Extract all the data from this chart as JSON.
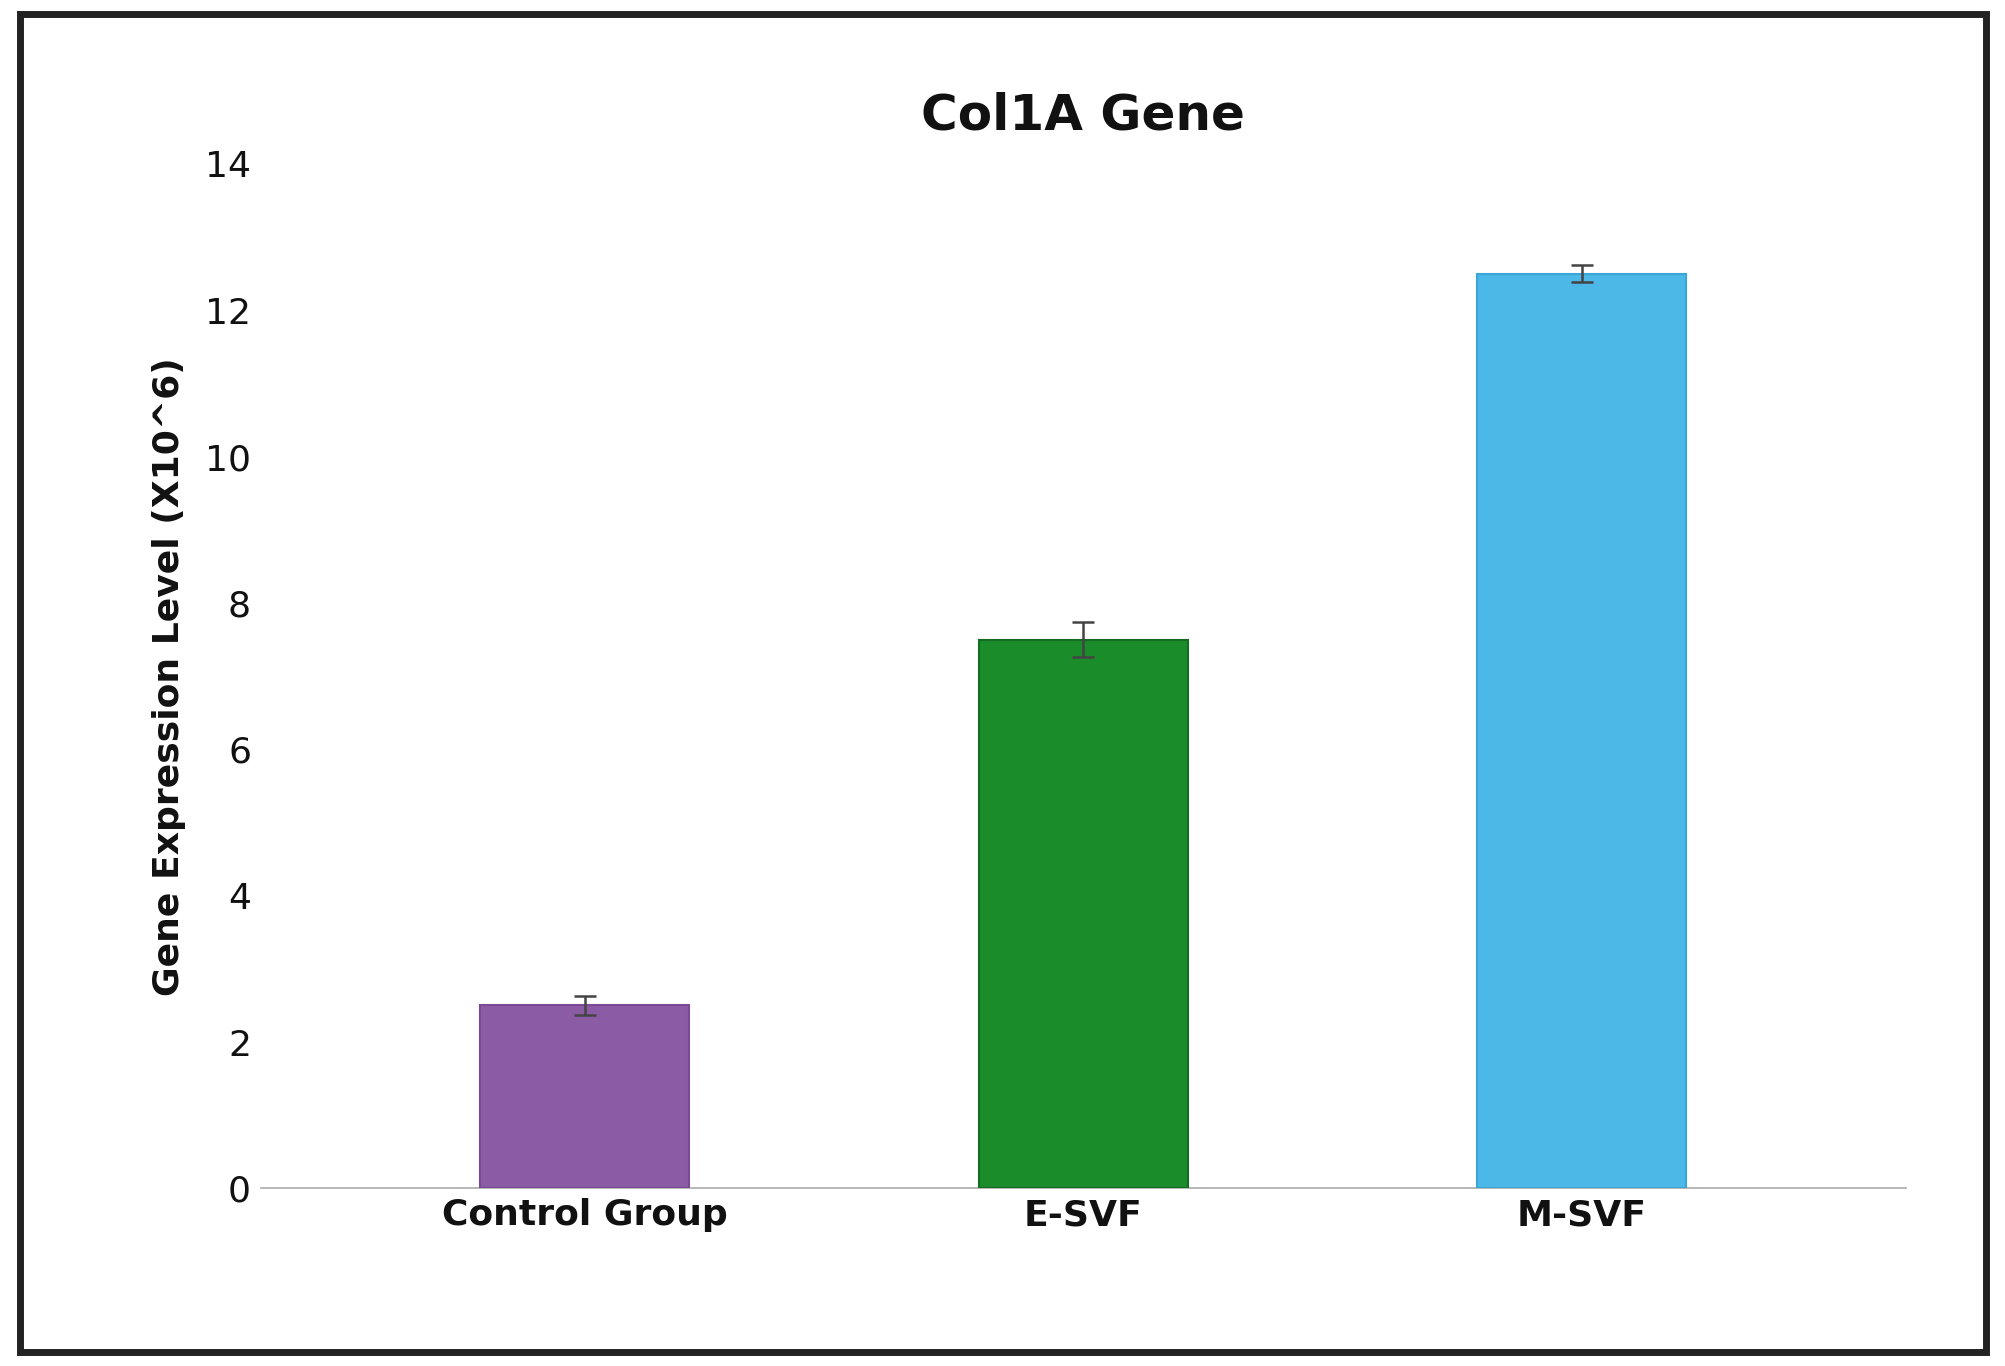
{
  "categories": [
    "Control Group",
    "E-SVF",
    "M-SVF"
  ],
  "values": [
    2.5,
    7.5,
    12.5
  ],
  "errors": [
    0.13,
    0.24,
    0.12
  ],
  "bar_colors": [
    "#8B5CA5",
    "#1A8C2A",
    "#4BB8E8"
  ],
  "bar_edgecolors": [
    "#7A4A95",
    "#156B22",
    "#3AA6D8"
  ],
  "title": "Col1A Gene",
  "ylabel": "Gene Expression Level (X10^6)",
  "ylim": [
    0,
    14
  ],
  "yticks": [
    0,
    2,
    4,
    6,
    8,
    10,
    12,
    14
  ],
  "title_fontsize": 36,
  "label_fontsize": 26,
  "tick_fontsize": 26,
  "bar_width": 0.42,
  "background_color": "#ffffff",
  "border_color": "#222222",
  "error_capsize": 8,
  "error_linewidth": 1.8,
  "error_color": "#444444",
  "xlim": [
    -0.65,
    2.65
  ]
}
